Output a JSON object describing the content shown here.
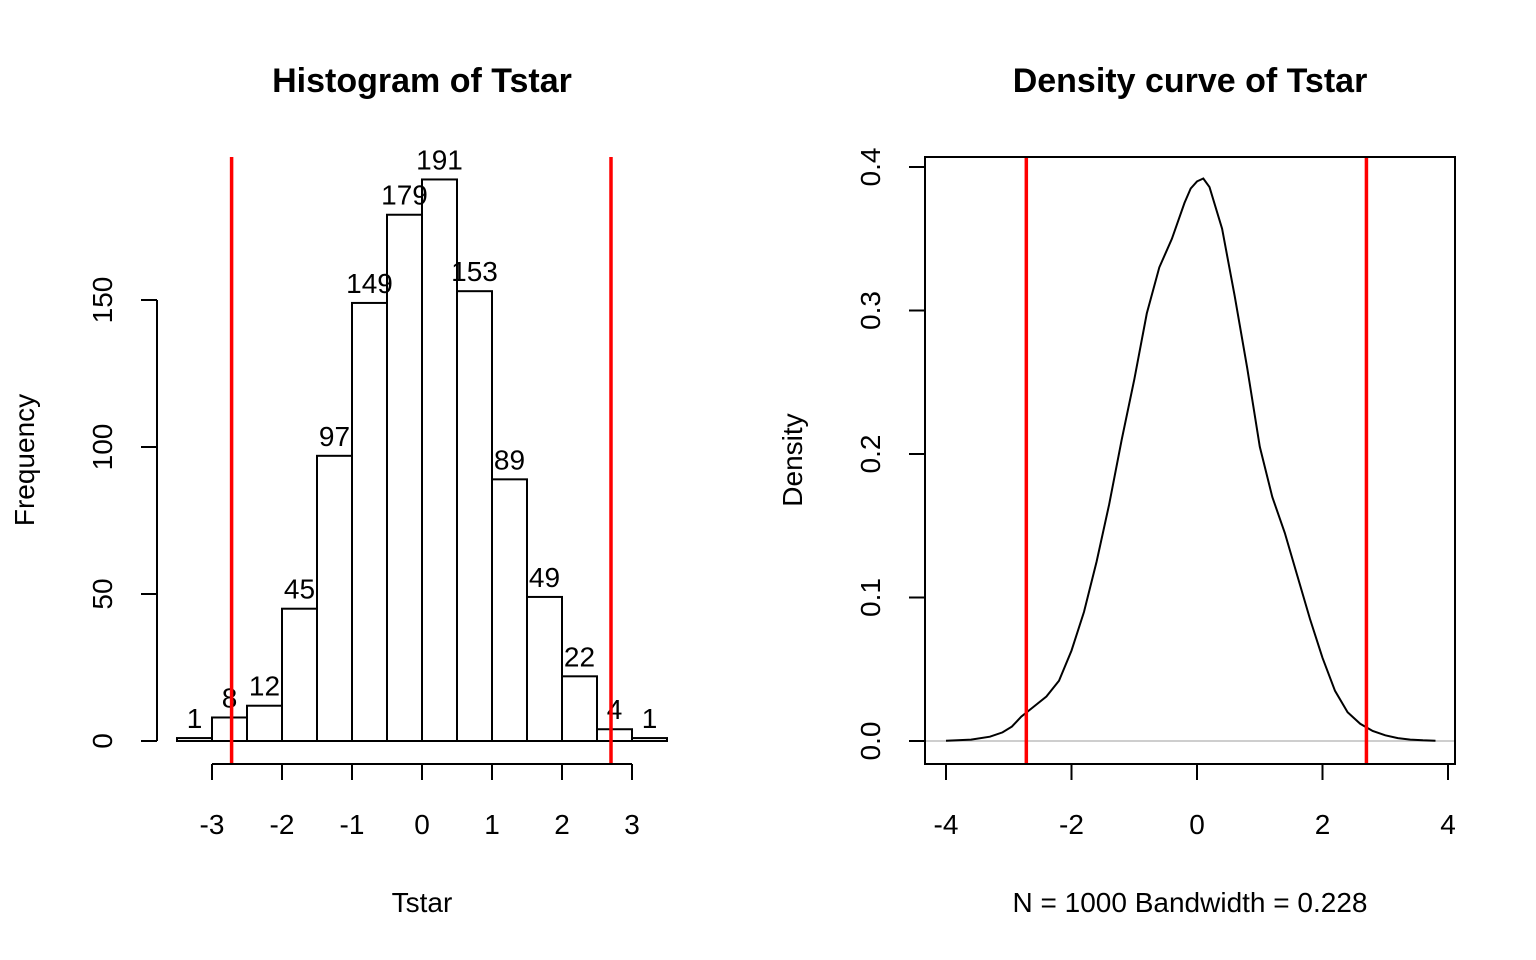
{
  "chart_data": [
    {
      "type": "bar",
      "title": "Histogram of Tstar",
      "xlabel": "Tstar",
      "ylabel": "Frequency",
      "bins": [
        {
          "x0": -3.5,
          "x1": -3.0,
          "count": 1
        },
        {
          "x0": -3.0,
          "x1": -2.5,
          "count": 8
        },
        {
          "x0": -2.5,
          "x1": -2.0,
          "count": 12
        },
        {
          "x0": -2.0,
          "x1": -1.5,
          "count": 45
        },
        {
          "x0": -1.5,
          "x1": -1.0,
          "count": 97
        },
        {
          "x0": -1.0,
          "x1": -0.5,
          "count": 149
        },
        {
          "x0": -0.5,
          "x1": 0.0,
          "count": 179
        },
        {
          "x0": 0.0,
          "x1": 0.5,
          "count": 191
        },
        {
          "x0": 0.5,
          "x1": 1.0,
          "count": 153
        },
        {
          "x0": 1.0,
          "x1": 1.5,
          "count": 89
        },
        {
          "x0": 1.5,
          "x1": 2.0,
          "count": 49
        },
        {
          "x0": 2.0,
          "x1": 2.5,
          "count": 22
        },
        {
          "x0": 2.5,
          "x1": 3.0,
          "count": 4
        },
        {
          "x0": 3.0,
          "x1": 3.5,
          "count": 1
        }
      ],
      "bar_labels": [
        "1",
        "8",
        "12",
        "45",
        "97",
        "149",
        "179",
        "191",
        "153",
        "89",
        "49",
        "22",
        "4",
        "1"
      ],
      "xticks": [
        "-3",
        "-2",
        "-1",
        "0",
        "1",
        "2",
        "3"
      ],
      "xtick_values": [
        -3,
        -2,
        -1,
        0,
        1,
        2,
        3
      ],
      "yticks": [
        "0",
        "50",
        "100",
        "150"
      ],
      "ytick_values": [
        0,
        50,
        100,
        150
      ],
      "xlim": [
        -3.5,
        3.5
      ],
      "ylim": [
        0,
        191
      ],
      "vlines": [
        -2.72,
        2.7
      ],
      "vline_color": "#ff0000"
    },
    {
      "type": "line",
      "title": "Density curve of Tstar",
      "xlabel": "N = 1000   Bandwidth = 0.228",
      "ylabel": "Density",
      "xticks": [
        "-4",
        "-2",
        "0",
        "2",
        "4"
      ],
      "xtick_values": [
        -4,
        -2,
        0,
        2,
        4
      ],
      "yticks": [
        "0.0",
        "0.1",
        "0.2",
        "0.3",
        "0.4"
      ],
      "ytick_values": [
        0,
        0.1,
        0.2,
        0.3,
        0.4
      ],
      "xlim": [
        -4.2,
        4.2
      ],
      "ylim": [
        -0.015,
        0.4
      ],
      "series": [
        {
          "x": [
            -4.0,
            -3.6,
            -3.3,
            -3.1,
            -2.95,
            -2.8,
            -2.6,
            -2.4,
            -2.2,
            -2.0,
            -1.8,
            -1.6,
            -1.4,
            -1.2,
            -1.0,
            -0.8,
            -0.6,
            -0.4,
            -0.2,
            -0.1,
            0.0,
            0.1,
            0.2,
            0.4,
            0.6,
            0.8,
            1.0,
            1.2,
            1.4,
            1.6,
            1.8,
            2.0,
            2.2,
            2.4,
            2.6,
            2.8,
            3.0,
            3.2,
            3.4,
            3.6,
            3.8
          ],
          "y": [
            0.0002,
            0.001,
            0.003,
            0.006,
            0.01,
            0.017,
            0.024,
            0.031,
            0.042,
            0.063,
            0.09,
            0.125,
            0.165,
            0.21,
            0.252,
            0.298,
            0.33,
            0.35,
            0.375,
            0.385,
            0.39,
            0.392,
            0.386,
            0.357,
            0.31,
            0.26,
            0.205,
            0.17,
            0.145,
            0.115,
            0.085,
            0.058,
            0.035,
            0.02,
            0.012,
            0.007,
            0.004,
            0.002,
            0.001,
            0.0005,
            0.0002
          ]
        }
      ],
      "vlines": [
        -2.72,
        2.7
      ],
      "vline_color": "#ff0000",
      "zero_line_color": "#bdbdbd"
    }
  ]
}
